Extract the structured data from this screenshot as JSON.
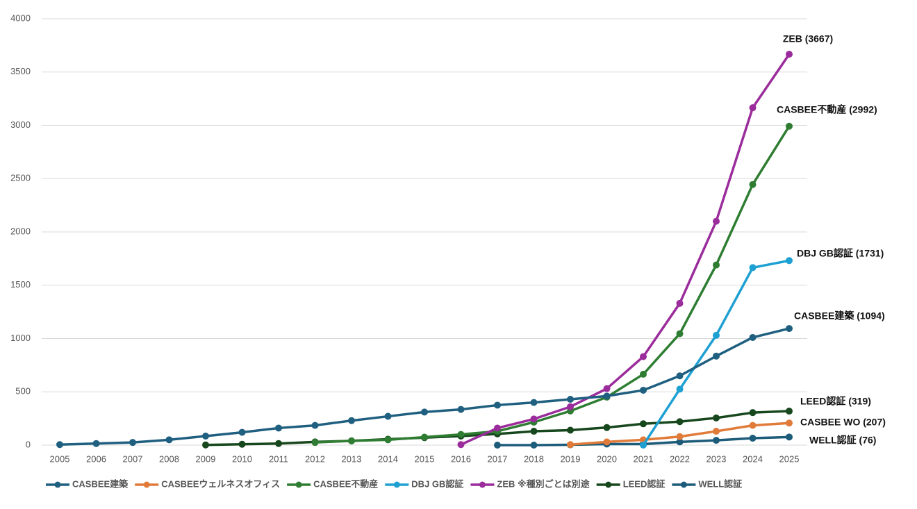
{
  "chart_data": {
    "type": "line",
    "categories": [
      "2005",
      "2006",
      "2007",
      "2008",
      "2009",
      "2010",
      "2011",
      "2012",
      "2013",
      "2014",
      "2015",
      "2016",
      "2017",
      "2018",
      "2019",
      "2020",
      "2021",
      "2022",
      "2023",
      "2024",
      "2025"
    ],
    "ylim": [
      0,
      4000
    ],
    "yticks": [
      0,
      500,
      1000,
      1500,
      2000,
      2500,
      3000,
      3500,
      4000
    ],
    "grid": true,
    "series": [
      {
        "name": "CASBEE建築",
        "color": "#1f5f80",
        "end_label": "CASBEE建築 (1094)",
        "values": [
          5,
          15,
          25,
          50,
          85,
          120,
          160,
          185,
          230,
          270,
          310,
          335,
          375,
          400,
          430,
          460,
          515,
          650,
          835,
          1010,
          1094
        ]
      },
      {
        "name": "CASBEEウェルネスオフィス",
        "color": "#e07b39",
        "end_label": "CASBEE WO (207)",
        "values": [
          null,
          null,
          null,
          null,
          null,
          null,
          null,
          null,
          null,
          null,
          null,
          null,
          null,
          null,
          5,
          30,
          50,
          80,
          130,
          185,
          207
        ]
      },
      {
        "name": "CASBEE不動産",
        "color": "#2e7d32",
        "end_label": "CASBEE不動産 (2992)",
        "values": [
          null,
          null,
          null,
          null,
          null,
          null,
          null,
          25,
          40,
          50,
          75,
          100,
          130,
          215,
          320,
          450,
          665,
          1045,
          1690,
          2445,
          2992
        ]
      },
      {
        "name": "DBJ GB認証",
        "color": "#1ea0d2",
        "end_label": "DBJ GB認証 (1731)",
        "values": [
          null,
          null,
          null,
          null,
          null,
          null,
          null,
          null,
          null,
          null,
          null,
          null,
          null,
          null,
          null,
          null,
          0,
          525,
          1030,
          1665,
          1731
        ]
      },
      {
        "name": "ZEB ※種別ごとは別途",
        "color": "#9b2c9b",
        "end_label": "ZEB (3667)",
        "values": [
          null,
          null,
          null,
          null,
          null,
          null,
          null,
          null,
          null,
          null,
          null,
          5,
          160,
          245,
          360,
          530,
          830,
          1330,
          2100,
          3165,
          3667
        ]
      },
      {
        "name": "LEED認証",
        "color": "#17471c",
        "end_label": "LEED認証 (319)",
        "values": [
          null,
          null,
          null,
          null,
          2,
          8,
          15,
          30,
          40,
          55,
          70,
          85,
          105,
          130,
          140,
          165,
          200,
          220,
          255,
          305,
          319
        ]
      },
      {
        "name": "WELL認証",
        "color": "#1d5b7a",
        "end_label": "WELL認証 (76)",
        "values": [
          null,
          null,
          null,
          null,
          null,
          null,
          null,
          null,
          null,
          null,
          null,
          null,
          0,
          0,
          3,
          10,
          10,
          30,
          45,
          65,
          76
        ]
      }
    ]
  }
}
